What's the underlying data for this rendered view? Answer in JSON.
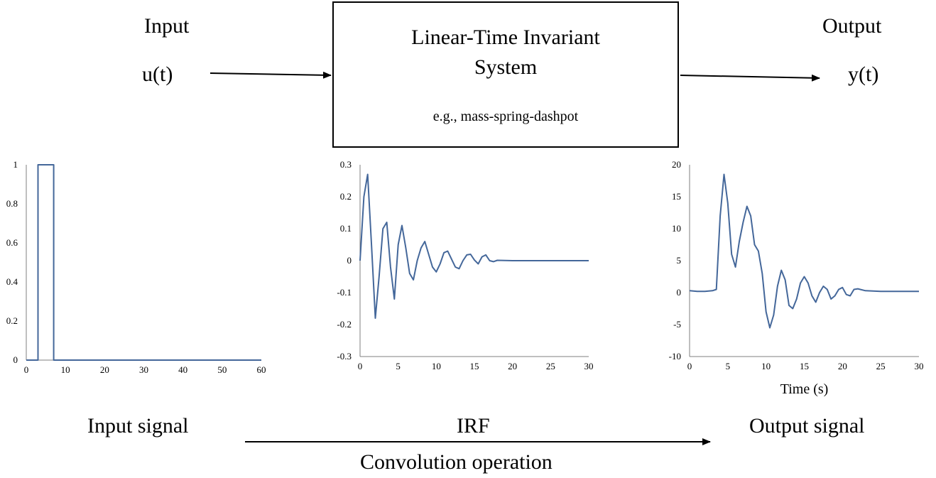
{
  "diagram": {
    "input_heading": "Input",
    "input_symbol": "u(t)",
    "system_title_line1": "Linear-Time Invariant",
    "system_title_line2": "System",
    "system_example": "e.g., mass-spring-dashpot",
    "output_heading": "Output",
    "output_symbol": "y(t)",
    "input_caption": "Input signal",
    "irf_caption": "IRF",
    "output_caption": "Output signal",
    "operation_caption": "Convolution operation"
  },
  "chart_data": [
    {
      "type": "line",
      "title": "",
      "xlabel": "",
      "ylabel": "",
      "xlim": [
        0,
        60
      ],
      "ylim": [
        0,
        1
      ],
      "xticks": [
        0,
        10,
        20,
        30,
        40,
        50,
        60
      ],
      "yticks": [
        0,
        0.2,
        0.4,
        0.6,
        0.8,
        1
      ],
      "ytick_labels": [
        "0",
        "0.2",
        "0.4",
        "0.6",
        "0.8",
        "1"
      ],
      "color": "#44679a",
      "grid": false,
      "series": [
        {
          "x": [
            0,
            3,
            3,
            7,
            7,
            60
          ],
          "y": [
            0,
            0,
            1,
            1,
            0,
            0
          ]
        }
      ]
    },
    {
      "type": "line",
      "title": "",
      "xlabel": "",
      "ylabel": "",
      "xlim": [
        0,
        30
      ],
      "ylim": [
        -0.3,
        0.3
      ],
      "xticks": [
        0,
        5,
        10,
        15,
        20,
        25,
        30
      ],
      "yticks": [
        -0.3,
        -0.2,
        -0.1,
        0,
        0.1,
        0.2,
        0.3
      ],
      "ytick_labels": [
        "-0.3",
        "-0.2",
        "-0.1",
        "0",
        "0.1",
        "0.2",
        "0.3"
      ],
      "color": "#44679a",
      "grid": false,
      "series": [
        {
          "x": [
            0,
            0.5,
            1,
            1.5,
            2,
            2.5,
            3,
            3.5,
            4,
            4.5,
            5,
            5.5,
            6,
            6.5,
            7,
            7.5,
            8,
            8.5,
            9,
            9.5,
            10,
            10.5,
            11,
            11.5,
            12,
            12.5,
            13,
            13.5,
            14,
            14.5,
            15,
            15.5,
            16,
            16.5,
            17,
            17.5,
            18,
            20,
            22,
            25,
            28,
            30
          ],
          "y": [
            0,
            0.2,
            0.27,
            0.05,
            -0.18,
            -0.05,
            0.1,
            0.12,
            -0.02,
            -0.12,
            0.05,
            0.11,
            0.04,
            -0.04,
            -0.06,
            0.0,
            0.04,
            0.06,
            0.02,
            -0.02,
            -0.035,
            -0.01,
            0.025,
            0.03,
            0.005,
            -0.02,
            -0.025,
            0.0,
            0.018,
            0.02,
            0.002,
            -0.01,
            0.012,
            0.018,
            0.0,
            -0.003,
            0.001,
            0.0,
            0.0,
            0.0,
            0.0,
            0.0
          ]
        }
      ]
    },
    {
      "type": "line",
      "title": "",
      "xlabel": "Time (s)",
      "ylabel": "",
      "xlim": [
        0,
        30
      ],
      "ylim": [
        -10,
        20
      ],
      "xticks": [
        0,
        5,
        10,
        15,
        20,
        25,
        30
      ],
      "yticks": [
        -10,
        -5,
        0,
        5,
        10,
        15,
        20
      ],
      "ytick_labels": [
        "-10",
        "-5",
        "0",
        "5",
        "10",
        "15",
        "20"
      ],
      "color": "#44679a",
      "grid": false,
      "series": [
        {
          "x": [
            0,
            1,
            2,
            3,
            3.5,
            4,
            4.5,
            5,
            5.5,
            6,
            6.5,
            7,
            7.5,
            8,
            8.5,
            9,
            9.5,
            10,
            10.5,
            11,
            11.5,
            12,
            12.5,
            13,
            13.5,
            14,
            14.5,
            15,
            15.5,
            16,
            16.5,
            17,
            17.5,
            18,
            18.5,
            19,
            19.5,
            20,
            20.5,
            21,
            21.5,
            22,
            23,
            25,
            27,
            30
          ],
          "y": [
            0.3,
            0.2,
            0.2,
            0.3,
            0.5,
            12,
            18.5,
            14,
            6,
            4,
            8,
            11,
            13.5,
            12,
            7.5,
            6.5,
            3,
            -3,
            -5.5,
            -3.5,
            1,
            3.5,
            2,
            -2,
            -2.5,
            -1,
            1.5,
            2.5,
            1.5,
            -0.5,
            -1.5,
            0,
            1,
            0.5,
            -1,
            -0.5,
            0.5,
            0.8,
            -0.3,
            -0.5,
            0.5,
            0.6,
            0.3,
            0.2,
            0.2,
            0.2
          ]
        }
      ]
    }
  ]
}
